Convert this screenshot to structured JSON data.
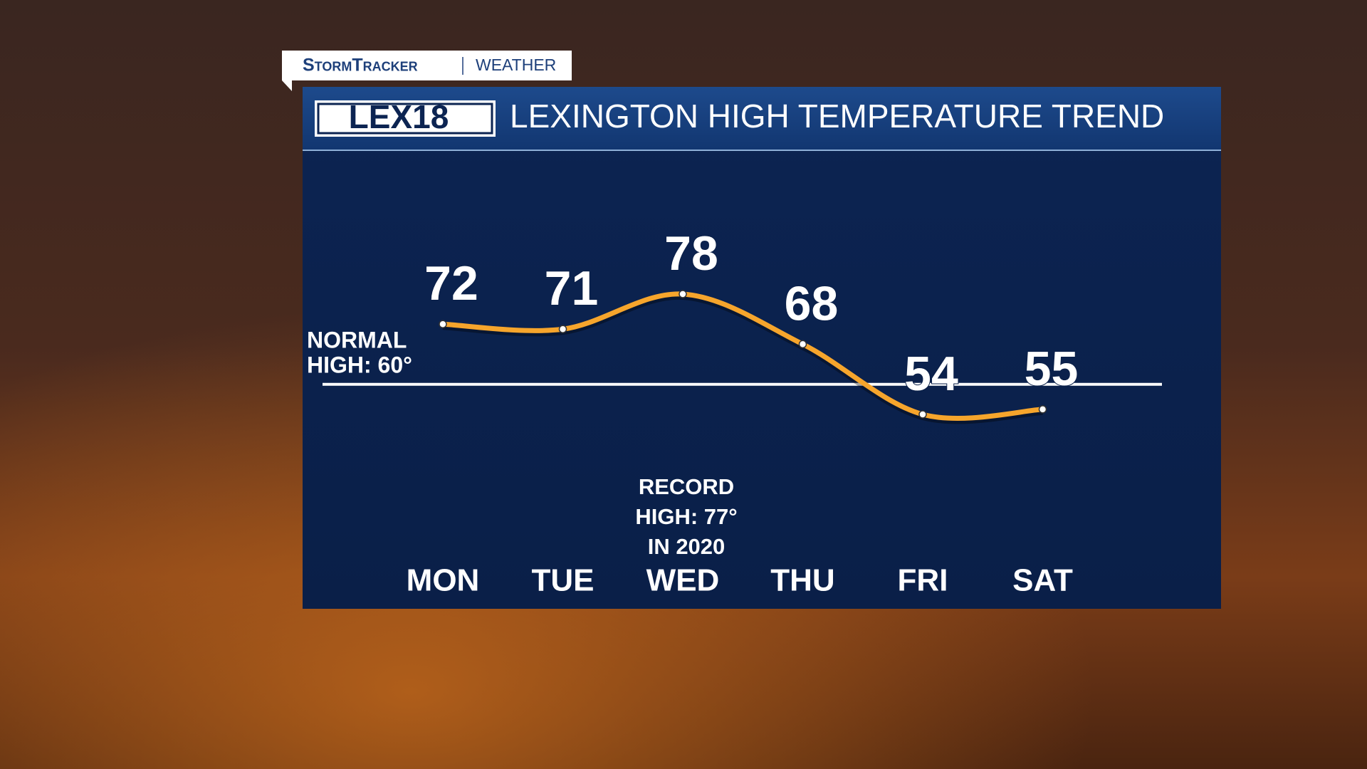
{
  "brand": {
    "name": "StormTracker",
    "section": "WEATHER",
    "logo": "LEX18"
  },
  "chart_data": {
    "type": "line",
    "title": "LEXINGTON HIGH TEMPERATURE TREND",
    "categories": [
      "MON",
      "TUE",
      "WED",
      "THU",
      "FRI",
      "SAT"
    ],
    "series": [
      {
        "name": "High temperature",
        "color": "#f6a52c",
        "values": [
          72,
          71,
          78,
          68,
          54,
          55
        ]
      }
    ],
    "normal_high": {
      "label": [
        "NORMAL",
        "HIGH: 60°"
      ],
      "value": 60,
      "color": "#ffffff"
    },
    "record": {
      "lines": [
        "RECORD",
        "HIGH: 77°",
        "IN 2020"
      ]
    }
  }
}
